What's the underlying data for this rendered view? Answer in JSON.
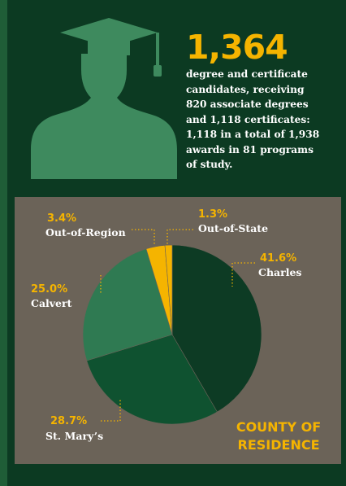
{
  "headline": {
    "number": "1,364",
    "description_lines": [
      "degree and certificate",
      "candidates, receiving",
      "820 associate degrees",
      "and 1,118 certificates:",
      "1,118 in a total of 1,938",
      "awards in 81 programs",
      "of study."
    ]
  },
  "icons": {
    "graduate": "graduate-silhouette-icon"
  },
  "colors": {
    "background": "#0c3a22",
    "panel": "#6b6358",
    "accent": "#f5b400"
  },
  "chart_data": {
    "type": "pie",
    "title_lines": [
      "COUNTY OF",
      "RESIDENCE"
    ],
    "slices": [
      {
        "label": "Charles",
        "pct_label": "41.6%",
        "value": 41.6,
        "color": "#0d3b24"
      },
      {
        "label": "St. Mary’s",
        "pct_label": "28.7%",
        "value": 28.7,
        "color": "#0f5230"
      },
      {
        "label": "Calvert",
        "pct_label": "25.0%",
        "value": 25.0,
        "color": "#2f7a52"
      },
      {
        "label": "Out-of-Region",
        "pct_label": "3.4%",
        "value": 3.4,
        "color": "#f5b400"
      },
      {
        "label": "Out-of-State",
        "pct_label": "1.3%",
        "value": 1.3,
        "color": "#f5b400"
      }
    ]
  }
}
